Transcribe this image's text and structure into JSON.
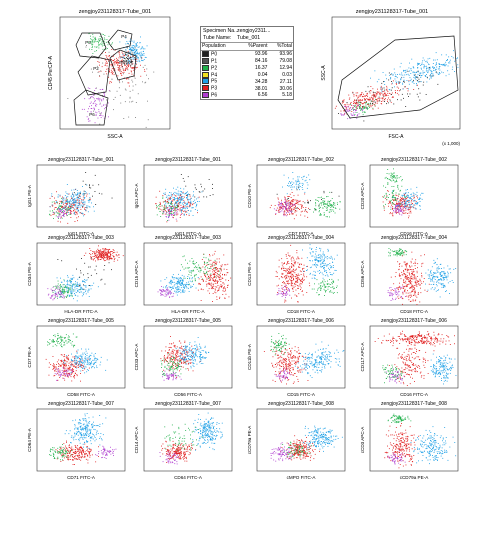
{
  "top_row": {
    "left_title": "zengjoy231128317-Tube_001",
    "right_title": "zengjoy231128317-Tube_001",
    "left_ylabel": "CD45 PerCP-A",
    "left_xlabel": "SSC-A",
    "right_ylabel": "SSC-A",
    "right_xlabel": "FSC-A",
    "right_scale_note": "(x 1,000)",
    "gates": [
      "P3",
      "P4",
      "P5",
      "P2",
      "P6"
    ]
  },
  "specimen": {
    "specimen_label": "Specimen Na...",
    "specimen_value": "zengjoy2311...",
    "tube_label": "Tube Name:",
    "tube_value": "Tube_001"
  },
  "pop_table": {
    "headers": [
      "Population",
      "%Parent",
      "%Total"
    ],
    "rows": [
      {
        "name": "P0",
        "parent": "93.96",
        "total": "93.96",
        "color": "#222222"
      },
      {
        "name": "P1",
        "parent": "84.16",
        "total": "79.08",
        "color": "#555555"
      },
      {
        "name": "P2",
        "parent": "16.37",
        "total": "12.94",
        "color": "#22b14c"
      },
      {
        "name": "P4",
        "parent": "0.04",
        "total": "0.03",
        "color": "#f0e020"
      },
      {
        "name": "P5",
        "parent": "34.28",
        "total": "27.11",
        "color": "#1ea0e6"
      },
      {
        "name": "P3",
        "parent": "38.01",
        "total": "30.06",
        "color": "#e02020"
      },
      {
        "name": "P6",
        "parent": "6.56",
        "total": "5.18",
        "color": "#b040d0"
      }
    ]
  },
  "chart_data": [
    {
      "type": "scatter",
      "title": "zengjoy231128317-Tube_001",
      "xlabel": "IgG1 FITC-A",
      "ylabel": "IgG1 PE-A",
      "pattern": "iso"
    },
    {
      "type": "scatter",
      "title": "zengjoy231128317-Tube_001",
      "xlabel": "IgG1 FITC-A",
      "ylabel": "IgG1 APC-A",
      "pattern": "iso"
    },
    {
      "type": "scatter",
      "title": "zengjoy231128317-Tube_002",
      "xlabel": "CD7 FITC-A",
      "ylabel": "CD10 PE-A",
      "pattern": "greenright"
    },
    {
      "type": "scatter",
      "title": "zengjoy231128317-Tube_002",
      "xlabel": "CD16 FITC-A",
      "ylabel": "CD20 APC-A",
      "pattern": "greenup"
    },
    {
      "type": "scatter",
      "title": "zengjoy231128317-Tube_003",
      "xlabel": "HLA-DR FITC-A",
      "ylabel": "CD34 PE-A",
      "pattern": "cd34"
    },
    {
      "type": "scatter",
      "title": "zengjoy231128317-Tube_003",
      "xlabel": "HLA-DR FITC-A",
      "ylabel": "CD15 APC-A",
      "pattern": "cd15"
    },
    {
      "type": "scatter",
      "title": "zengjoy231128317-Tube_004",
      "xlabel": "CD18 FITC-A",
      "ylabel": "CD13 PE-A",
      "pattern": "cd13"
    },
    {
      "type": "scatter",
      "title": "zengjoy231128317-Tube_004",
      "xlabel": "CD18 FITC-A",
      "ylabel": "CD56 APC-A",
      "pattern": "cd56"
    },
    {
      "type": "scatter",
      "title": "zengjoy231128317-Tube_005",
      "xlabel": "CD58 FITC-A",
      "ylabel": "CD7 PE-A",
      "pattern": "cd7"
    },
    {
      "type": "scatter",
      "title": "zengjoy231128317-Tube_005",
      "xlabel": "CD56 FITC-A",
      "ylabel": "CD33 APC-A",
      "pattern": "cd33"
    },
    {
      "type": "scatter",
      "title": "zengjoy231128317-Tube_006",
      "xlabel": "CD15 FITC-A",
      "ylabel": "CD11b PE-A",
      "pattern": "cd11b"
    },
    {
      "type": "scatter",
      "title": "zengjoy231128317-Tube_006",
      "xlabel": "CD16 FITC-A",
      "ylabel": "CD117 APC-A",
      "pattern": "cd117"
    },
    {
      "type": "scatter",
      "title": "zengjoy231128317-Tube_007",
      "xlabel": "CD71 FITC-A",
      "ylabel": "CD64 PE-A",
      "pattern": "cd64"
    },
    {
      "type": "scatter",
      "title": "zengjoy231128317-Tube_007",
      "xlabel": "CD64 FITC-A",
      "ylabel": "CD14 APC-A",
      "pattern": "cd14"
    },
    {
      "type": "scatter",
      "title": "zengjoy231128317-Tube_008",
      "xlabel": "cMPO FITC-A",
      "ylabel": "cCD79a PE-A",
      "pattern": "mpo"
    },
    {
      "type": "scatter",
      "title": "zengjoy231128317-Tube_008",
      "xlabel": "cCD79a PE-A",
      "ylabel": "cCD3 APC-A",
      "pattern": "cd3"
    }
  ]
}
